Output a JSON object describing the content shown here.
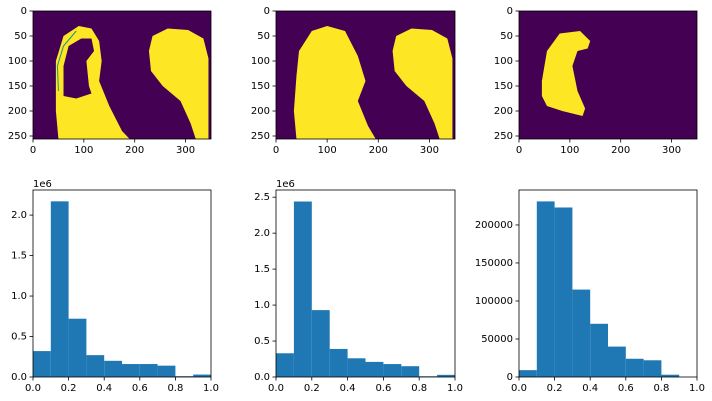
{
  "chart_data": [
    {
      "type": "image",
      "xlim": [
        0,
        350
      ],
      "ylim": [
        256,
        0
      ],
      "xticks": [
        0,
        100,
        200,
        300
      ],
      "yticks": [
        0,
        50,
        100,
        150,
        200,
        250
      ]
    },
    {
      "type": "image",
      "xlim": [
        0,
        350
      ],
      "ylim": [
        256,
        0
      ],
      "xticks": [
        0,
        100,
        200,
        300
      ],
      "yticks": [
        0,
        50,
        100,
        150,
        200,
        250
      ]
    },
    {
      "type": "image",
      "xlim": [
        0,
        350
      ],
      "ylim": [
        256,
        0
      ],
      "xticks": [
        0,
        100,
        200,
        300
      ],
      "yticks": [
        0,
        50,
        100,
        150,
        200,
        250
      ]
    },
    {
      "type": "histogram",
      "color": "#1f77b4",
      "offset_label": "1e6",
      "bins": [
        0,
        0.1,
        0.2,
        0.3,
        0.4,
        0.5,
        0.6,
        0.7,
        0.8,
        0.9,
        1
      ],
      "values": [
        320000,
        2170000,
        720000,
        270000,
        200000,
        160000,
        160000,
        140000,
        10000,
        30000
      ],
      "xlim": [
        0,
        1
      ],
      "ylim": [
        0,
        2310000
      ],
      "xticks": [
        {
          "value": 0,
          "label": "0.0"
        },
        0.2,
        0.4,
        0.6,
        0.8,
        {
          "value": 1,
          "label": "1.0"
        }
      ],
      "yticks": [
        {
          "value": 0,
          "label": "0.0"
        },
        {
          "value": 500000,
          "label": "0.5"
        },
        {
          "value": 1000000,
          "label": "1.0"
        },
        {
          "value": 1500000,
          "label": "1.5"
        },
        {
          "value": 2000000,
          "label": "2.0"
        }
      ]
    },
    {
      "type": "histogram",
      "color": "#1f77b4",
      "offset_label": "1e6",
      "bins": [
        0,
        0.1,
        0.2,
        0.3,
        0.4,
        0.5,
        0.6,
        0.7,
        0.8,
        0.9,
        1
      ],
      "values": [
        330000,
        2440000,
        930000,
        390000,
        260000,
        210000,
        180000,
        150000,
        10000,
        30000
      ],
      "xlim": [
        0,
        1
      ],
      "ylim": [
        0,
        2600000
      ],
      "xticks": [
        {
          "value": 0,
          "label": "0.0"
        },
        0.2,
        0.4,
        0.6,
        0.8,
        {
          "value": 1,
          "label": "1.0"
        }
      ],
      "yticks": [
        {
          "value": 0,
          "label": "0.0"
        },
        {
          "value": 500000,
          "label": "0.5"
        },
        {
          "value": 1000000,
          "label": "1.0"
        },
        {
          "value": 1500000,
          "label": "1.5"
        },
        {
          "value": 2000000,
          "label": "2.0"
        },
        {
          "value": 2500000,
          "label": "2.5"
        }
      ]
    },
    {
      "type": "histogram",
      "color": "#1f77b4",
      "bins": [
        0,
        0.1,
        0.2,
        0.3,
        0.4,
        0.5,
        0.6,
        0.7,
        0.8,
        0.9,
        1
      ],
      "values": [
        9000,
        231000,
        223000,
        115000,
        70000,
        40000,
        24000,
        22000,
        3000,
        0
      ],
      "xlim": [
        0,
        1
      ],
      "ylim": [
        0,
        246000
      ],
      "xticks": [
        {
          "value": 0,
          "label": "0.0"
        },
        0.2,
        0.4,
        0.6,
        0.8,
        {
          "value": 1,
          "label": "1.0"
        }
      ],
      "yticks": [
        0,
        50000,
        100000,
        150000,
        200000
      ]
    }
  ]
}
